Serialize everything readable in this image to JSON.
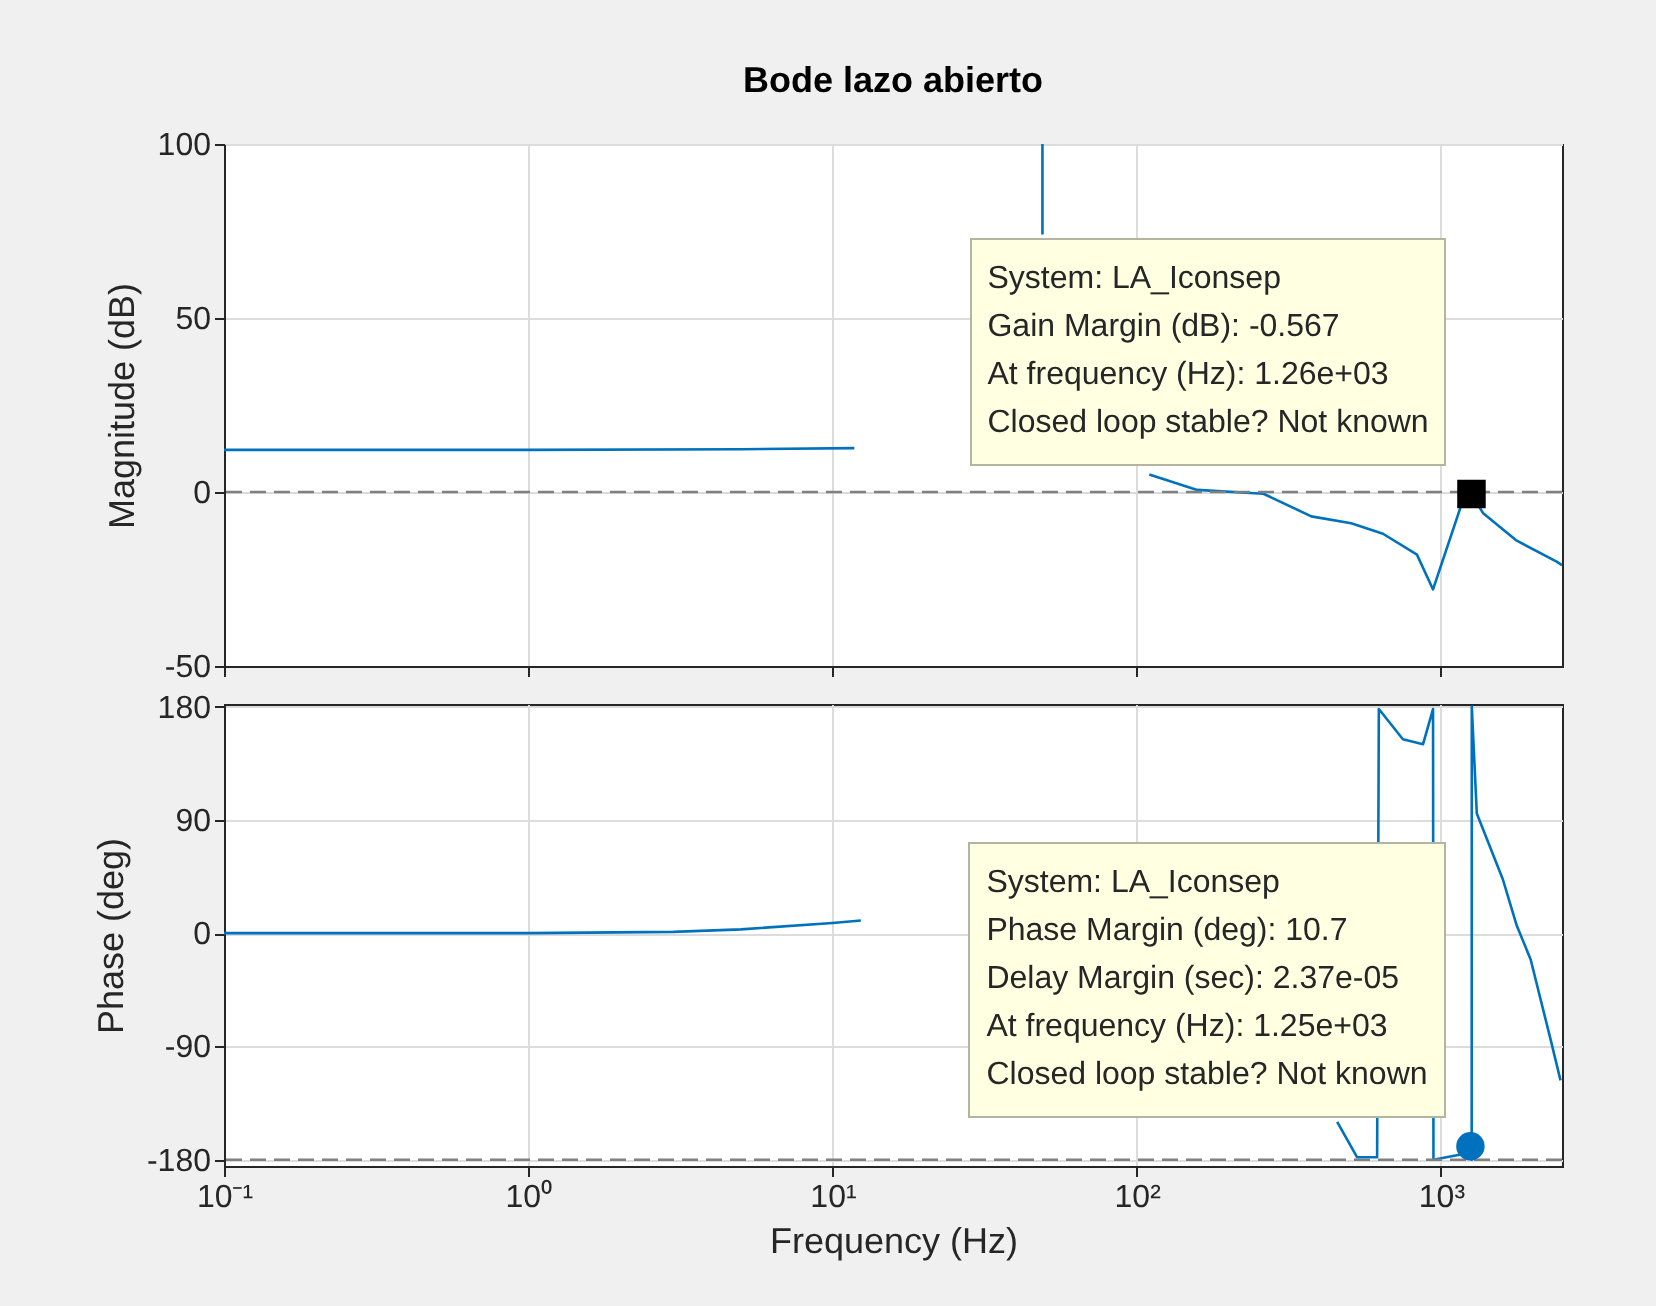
{
  "chart_data": [
    {
      "type": "line",
      "title": "Bode lazo abierto",
      "ylabel": "Magnitude (dB)",
      "log": "x",
      "grid": true,
      "tick_labels": "y",
      "xlim": [
        0.1,
        2500
      ],
      "xticks": [
        {
          "value": 0.1,
          "label": null
        },
        {
          "value": 1,
          "label": null
        },
        {
          "value": 10,
          "label": null
        },
        {
          "value": 100,
          "label": null
        },
        {
          "value": 1000,
          "label": null
        }
      ],
      "ylim": [
        -50,
        100
      ],
      "yticks": [
        -50,
        0,
        50,
        100
      ],
      "series": [
        {
          "color": "#0072bd",
          "marker": "none",
          "x": [
            0.1,
            1,
            5,
            11.8,
            20,
            49,
            49,
            55,
            110,
            158,
            261,
            375,
            507,
            645,
            834,
            942,
            1164,
            1260,
            1374,
            1775,
            2400,
            2500
          ],
          "values": [
            12.1,
            12.1,
            12.3,
            12.6,
            null,
            74,
            100,
            null,
            5,
            0.6,
            -0.5,
            -7,
            -9,
            -12,
            -18,
            -28,
            -4,
            -0.567,
            -6,
            -14,
            -20,
            -21
          ]
        },
        {
          "type": "scatter",
          "color": "#000000",
          "marker": "square",
          "x": [
            1260
          ],
          "values": [
            -0.567
          ]
        }
      ],
      "ref_lines": [
        {
          "axis": "y",
          "value": 0,
          "color": "#808080",
          "line_style": "dashed"
        }
      ],
      "annotations": [
        {
          "text": "System: LA_Iconsep\nGain Margin (dB): -0.567\nAt frequency (Hz): 1.26e+03\nClosed loop stable? Not known",
          "x": 1260,
          "y": -0.567
        }
      ]
    },
    {
      "type": "line",
      "ylabel": "Phase (deg)",
      "xlabel": "Frequency  (Hz)",
      "log": "x",
      "grid": true,
      "xlim": [
        0.1,
        2500
      ],
      "xticks": [
        {
          "value": 0.1,
          "label": "10⁻¹"
        },
        {
          "value": 1,
          "label": "10⁰"
        },
        {
          "value": 10,
          "label": "10¹"
        },
        {
          "value": 100,
          "label": "10²"
        },
        {
          "value": 1000,
          "label": "10³"
        }
      ],
      "ylim": [
        -185,
        182
      ],
      "yticks": [
        -180,
        -90,
        0,
        90,
        180
      ],
      "series": [
        {
          "color": "#0072bd",
          "marker": "none",
          "x": [
            0.1,
            1,
            3,
            5,
            10,
            12.4,
            20,
            456,
            530,
            617,
            625,
            750,
            873,
            942,
            945,
            1150,
            1250,
            1262,
            1263,
            1312,
            1596,
            1775,
            1972,
            2296,
            2472
          ],
          "values": [
            0,
            0,
            1,
            3,
            8,
            10,
            null,
            -150,
            -178,
            -178,
            178,
            154,
            150,
            178,
            -180,
            -176,
            -169.3,
            -180,
            180,
            95,
            43,
            6,
            -21,
            -85,
            -117
          ]
        },
        {
          "type": "scatter",
          "color": "#0072bd",
          "marker": "circle",
          "x": [
            1250
          ],
          "values": [
            -169.3
          ]
        }
      ],
      "ref_lines": [
        {
          "axis": "y",
          "value": -180,
          "color": "#808080",
          "line_style": "dashed"
        }
      ],
      "annotations": [
        {
          "text": "System: LA_Iconsep\nPhase Margin (deg): 10.7\nDelay Margin (sec): 2.37e-05\nAt frequency (Hz): 1.25e+03\nClosed loop stable? Not known",
          "x": 1250,
          "y": -169.3
        }
      ]
    }
  ]
}
